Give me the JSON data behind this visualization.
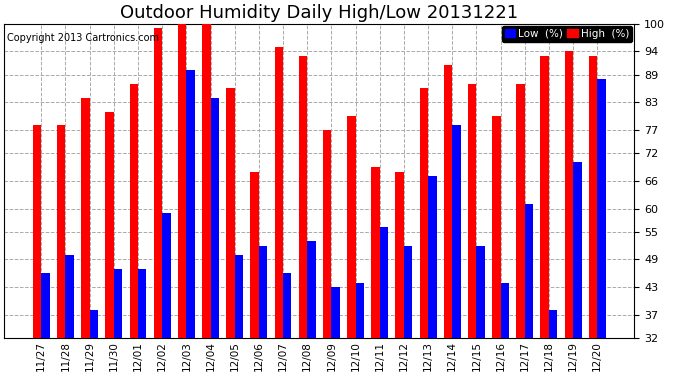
{
  "title": "Outdoor Humidity Daily High/Low 20131221",
  "copyright": "Copyright 2013 Cartronics.com",
  "categories": [
    "11/27",
    "11/28",
    "11/29",
    "11/30",
    "12/01",
    "12/02",
    "12/03",
    "12/04",
    "12/05",
    "12/06",
    "12/07",
    "12/08",
    "12/09",
    "12/10",
    "12/11",
    "12/12",
    "12/13",
    "12/14",
    "12/15",
    "12/16",
    "12/17",
    "12/18",
    "12/19",
    "12/20"
  ],
  "high_values": [
    78,
    78,
    84,
    81,
    87,
    99,
    100,
    100,
    86,
    68,
    95,
    93,
    77,
    80,
    69,
    68,
    86,
    91,
    87,
    80,
    87,
    93,
    94,
    93
  ],
  "low_values": [
    46,
    50,
    38,
    47,
    47,
    59,
    90,
    84,
    50,
    52,
    46,
    53,
    43,
    44,
    56,
    52,
    67,
    78,
    52,
    44,
    61,
    38,
    70,
    88
  ],
  "high_color": "#ff0000",
  "low_color": "#0000ff",
  "bg_color": "#ffffff",
  "grid_color": "#aaaaaa",
  "ylim_min": 32,
  "ylim_max": 100,
  "yticks": [
    32,
    37,
    43,
    49,
    55,
    60,
    66,
    72,
    77,
    83,
    89,
    94,
    100
  ],
  "title_fontsize": 13,
  "copyright_fontsize": 7,
  "legend_low_label": "Low  (%)",
  "legend_high_label": "High  (%)",
  "bar_width": 0.35
}
